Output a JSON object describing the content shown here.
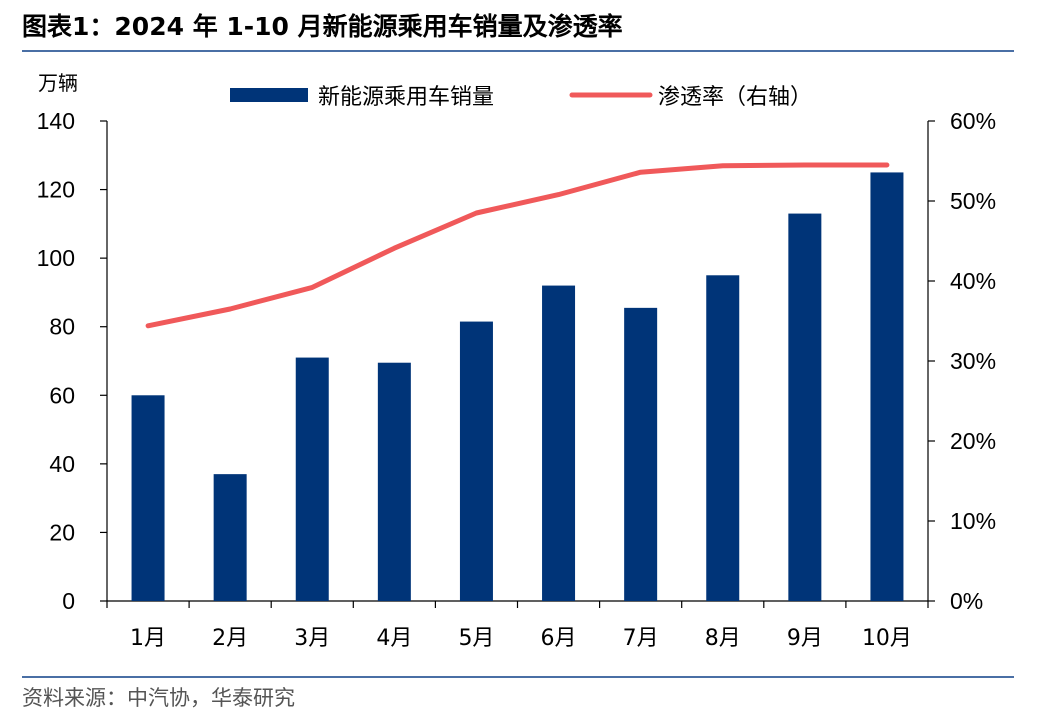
{
  "header": {
    "figure_label": "图表1：",
    "title": "2024 年 1-10 月新能源乘用车销量及渗透率"
  },
  "footer": {
    "source": "资料来源：中汽协，华泰研究"
  },
  "colors": {
    "bar": "#003478",
    "line": "#f0595a",
    "rule": "#4a6fa5"
  },
  "chart_data": {
    "type": "bar",
    "title": "2024 年 1-10 月新能源乘用车销量及渗透率",
    "left_unit": "万辆",
    "categories": [
      "1月",
      "2月",
      "3月",
      "4月",
      "5月",
      "6月",
      "7月",
      "8月",
      "9月",
      "10月"
    ],
    "series": [
      {
        "name": "新能源乘用车销量",
        "type": "bar",
        "axis": "left",
        "values": [
          60,
          37,
          71,
          69.5,
          81.5,
          92,
          85.5,
          95,
          113,
          125
        ]
      },
      {
        "name": "渗透率（右轴）",
        "type": "line",
        "axis": "right",
        "values": [
          34.4,
          36.5,
          39.2,
          44.1,
          48.5,
          50.8,
          53.6,
          54.4,
          54.5,
          54.5
        ]
      }
    ],
    "y_left": {
      "min": 0,
      "max": 140,
      "ticks": [
        0,
        20,
        40,
        60,
        80,
        100,
        120,
        140
      ],
      "tick_labels": [
        "0",
        "20",
        "40",
        "60",
        "80",
        "100",
        "120",
        "140"
      ]
    },
    "y_right": {
      "min": 0,
      "max": 60,
      "ticks": [
        0,
        10,
        20,
        30,
        40,
        50,
        60
      ],
      "tick_labels": [
        "0%",
        "10%",
        "20%",
        "30%",
        "40%",
        "50%",
        "60%"
      ]
    },
    "legend": {
      "position": "top"
    },
    "grid": false
  }
}
